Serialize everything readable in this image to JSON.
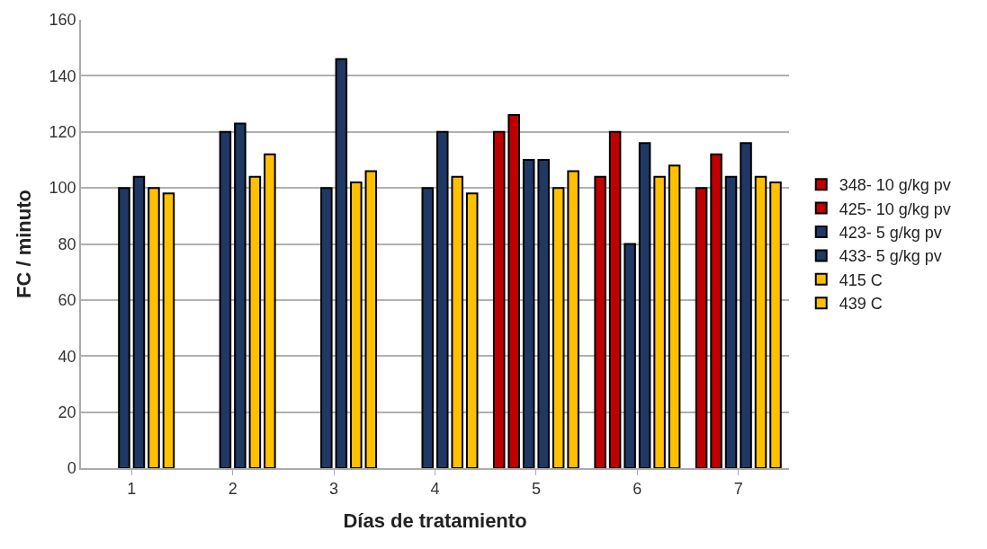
{
  "chart_data": {
    "type": "bar",
    "xlabel": "Días de tratamiento",
    "ylabel": "FC / minuto",
    "categories": [
      "1",
      "2",
      "3",
      "4",
      "5",
      "6",
      "7"
    ],
    "series": [
      {
        "name": "348- 10 g/kg pv",
        "color": "#c00000",
        "values": [
          null,
          null,
          null,
          null,
          120,
          104,
          100
        ]
      },
      {
        "name": "425- 10 g/kg pv",
        "color": "#c00000",
        "values": [
          null,
          null,
          null,
          null,
          126,
          120,
          112
        ]
      },
      {
        "name": "423- 5 g/kg pv",
        "color": "#1f3864",
        "values": [
          100,
          120,
          100,
          100,
          110,
          80,
          104
        ]
      },
      {
        "name": "433- 5 g/kg pv",
        "color": "#1f3864",
        "values": [
          104,
          123,
          146,
          120,
          110,
          116,
          116
        ]
      },
      {
        "name": "415 C",
        "color": "#ffc000",
        "values": [
          100,
          104,
          102,
          104,
          100,
          104,
          104
        ]
      },
      {
        "name": "439 C",
        "color": "#ffc000",
        "values": [
          98,
          112,
          106,
          98,
          106,
          108,
          102
        ]
      }
    ],
    "ylim": [
      0,
      160
    ],
    "yticks": [
      0,
      20,
      40,
      60,
      80,
      100,
      120,
      140,
      160
    ],
    "grid": "y",
    "legend": "right"
  }
}
